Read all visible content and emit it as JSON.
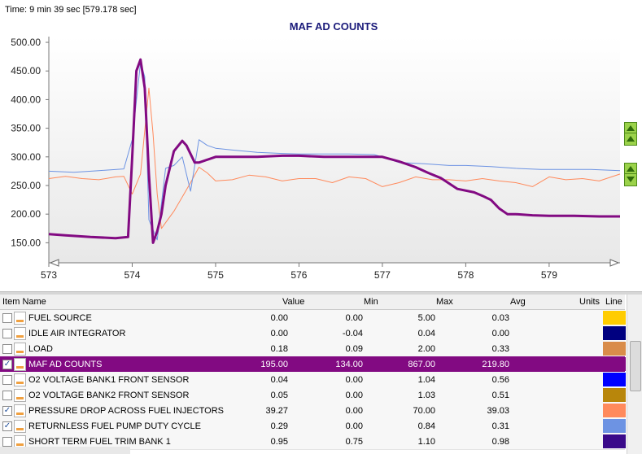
{
  "time_label": "Time: 9 min 39 sec [579.178 sec]",
  "chart_data": {
    "type": "line",
    "title": "MAF AD COUNTS",
    "xlim": [
      573,
      579.85
    ],
    "ylim": [
      115,
      510
    ],
    "y_ticks": [
      "500.00",
      "450.00",
      "400.00",
      "350.00",
      "300.00",
      "250.00",
      "200.00",
      "150.00"
    ],
    "x_ticks": [
      "573",
      "574",
      "575",
      "576",
      "577",
      "578",
      "579"
    ],
    "series": [
      {
        "name": "MAF AD COUNTS",
        "color": "#820a82",
        "x": [
          573.0,
          573.2,
          573.5,
          573.8,
          573.95,
          574.0,
          574.05,
          574.1,
          574.15,
          574.2,
          574.25,
          574.3,
          574.35,
          574.4,
          574.5,
          574.6,
          574.65,
          574.75,
          574.8,
          575.0,
          575.2,
          575.5,
          575.8,
          576.0,
          576.3,
          576.6,
          576.8,
          577.0,
          577.2,
          577.4,
          577.55,
          577.7,
          577.9,
          578.1,
          578.2,
          578.3,
          578.4,
          578.5,
          578.6,
          578.8,
          579.0,
          579.3,
          579.6,
          579.85
        ],
        "y": [
          165,
          163,
          160,
          158,
          160,
          300,
          450,
          470,
          420,
          270,
          150,
          170,
          200,
          250,
          310,
          328,
          320,
          290,
          290,
          300,
          300,
          300,
          302,
          302,
          300,
          300,
          300,
          300,
          292,
          282,
          272,
          263,
          244,
          238,
          232,
          225,
          210,
          200,
          200,
          198,
          197,
          197,
          196,
          196
        ]
      },
      {
        "name": "",
        "color": "#6d93e3",
        "x": [
          573.0,
          573.3,
          573.6,
          573.9,
          574.0,
          574.1,
          574.15,
          574.2,
          574.3,
          574.4,
          574.5,
          574.6,
          574.7,
          574.8,
          574.9,
          575.0,
          575.2,
          575.5,
          575.8,
          576.0,
          576.3,
          576.6,
          576.9,
          577.0,
          577.2,
          577.5,
          577.8,
          578.0,
          578.3,
          578.6,
          578.9,
          579.2,
          579.5,
          579.85
        ],
        "y": [
          275,
          273,
          276,
          279,
          330,
          465,
          440,
          190,
          155,
          280,
          285,
          300,
          240,
          330,
          320,
          315,
          312,
          308,
          306,
          305,
          305,
          305,
          304,
          300,
          290,
          288,
          285,
          285,
          283,
          280,
          278,
          278,
          278,
          276
        ]
      },
      {
        "name": "",
        "color": "#ff8a5c",
        "x": [
          573.0,
          573.2,
          573.4,
          573.6,
          573.8,
          573.9,
          574.0,
          574.1,
          574.2,
          574.25,
          574.3,
          574.35,
          574.4,
          574.5,
          574.6,
          574.7,
          574.8,
          574.9,
          575.0,
          575.2,
          575.4,
          575.6,
          575.8,
          576.0,
          576.2,
          576.4,
          576.6,
          576.8,
          577.0,
          577.2,
          577.4,
          577.6,
          577.8,
          578.0,
          578.2,
          578.4,
          578.6,
          578.8,
          579.0,
          579.2,
          579.4,
          579.6,
          579.85
        ],
        "y": [
          262,
          266,
          262,
          260,
          265,
          266,
          235,
          270,
          420,
          340,
          235,
          175,
          185,
          205,
          230,
          255,
          282,
          272,
          258,
          260,
          268,
          265,
          258,
          262,
          262,
          255,
          265,
          262,
          248,
          255,
          265,
          260,
          260,
          258,
          262,
          258,
          255,
          248,
          265,
          260,
          262,
          258,
          270
        ]
      }
    ],
    "grid": false,
    "legend": "none"
  },
  "grid_header": {
    "item_name": "Item Name",
    "value": "Value",
    "min": "Min",
    "max": "Max",
    "avg": "Avg",
    "units": "Units",
    "line": "Line"
  },
  "rows": [
    {
      "name": "FUEL SOURCE",
      "checked": false,
      "value": "0.00",
      "min": "0.00",
      "max": "5.00",
      "avg": "0.03",
      "units": "",
      "color": "#ffcc00",
      "selected": false
    },
    {
      "name": "IDLE AIR INTEGRATOR",
      "checked": false,
      "value": "0.00",
      "min": "-0.04",
      "max": "0.04",
      "avg": "0.00",
      "units": "",
      "color": "#000080",
      "selected": false
    },
    {
      "name": "LOAD",
      "checked": false,
      "value": "0.18",
      "min": "0.09",
      "max": "2.00",
      "avg": "0.33",
      "units": "",
      "color": "#d98c4a",
      "selected": false
    },
    {
      "name": "MAF AD COUNTS",
      "checked": true,
      "value": "195.00",
      "min": "134.00",
      "max": "867.00",
      "avg": "219.80",
      "units": "",
      "color": "#820a82",
      "selected": true
    },
    {
      "name": "O2 VOLTAGE BANK1 FRONT SENSOR",
      "checked": false,
      "value": "0.04",
      "min": "0.00",
      "max": "1.04",
      "avg": "0.56",
      "units": "",
      "color": "#0000ff",
      "selected": false
    },
    {
      "name": "O2 VOLTAGE BANK2 FRONT SENSOR",
      "checked": false,
      "value": "0.05",
      "min": "0.00",
      "max": "1.03",
      "avg": "0.51",
      "units": "",
      "color": "#b8860b",
      "selected": false
    },
    {
      "name": "PRESSURE DROP ACROSS FUEL INJECTORS",
      "checked": true,
      "value": "39.27",
      "min": "0.00",
      "max": "70.00",
      "avg": "39.03",
      "units": "",
      "color": "#ff8a5c",
      "selected": false
    },
    {
      "name": "RETURNLESS FUEL PUMP DUTY CYCLE",
      "checked": true,
      "value": "0.29",
      "min": "0.00",
      "max": "0.84",
      "avg": "0.31",
      "units": "",
      "color": "#6d93e3",
      "selected": false
    },
    {
      "name": "SHORT TERM FUEL TRIM BANK 1",
      "checked": false,
      "value": "0.95",
      "min": "0.75",
      "max": "1.10",
      "avg": "0.98",
      "units": "",
      "color": "#3a0a8a",
      "selected": false
    }
  ]
}
